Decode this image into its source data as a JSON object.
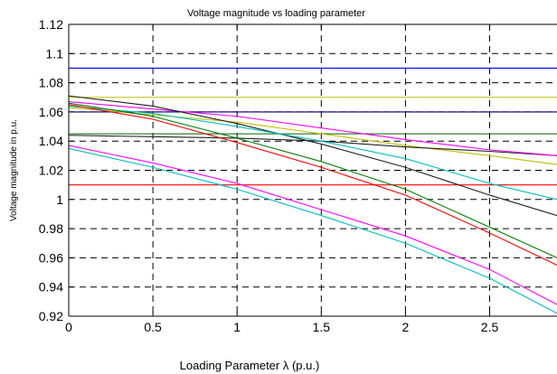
{
  "chart_data": {
    "type": "line",
    "title": "Voltage magnitude vs loading parameter",
    "xlabel": "Loading Parameter λ (p.u.)",
    "ylabel": "Voltage magnitude in p.u.",
    "xlim": [
      0,
      2.9
    ],
    "ylim": [
      0.92,
      1.12
    ],
    "x_ticks": [
      0,
      0.5,
      1,
      1.5,
      2,
      2.5
    ],
    "x_tick_labels": [
      "0",
      "0.5",
      "1",
      "1.5",
      "2",
      "2.5"
    ],
    "y_ticks": [
      0.92,
      0.94,
      0.96,
      0.98,
      1.0,
      1.02,
      1.04,
      1.06,
      1.08,
      1.1,
      1.12
    ],
    "y_tick_labels": [
      "0.92",
      "0.94",
      "0.96",
      "0.98",
      "1",
      "1.02",
      "1.04",
      "1.06",
      "1.08",
      "1.1",
      "1.12"
    ],
    "grid": true,
    "legend": "none",
    "series": [
      {
        "color": "#0000ff",
        "x": [
          0,
          2.9
        ],
        "y": [
          1.09,
          1.09
        ]
      },
      {
        "color": "#bfbf00",
        "x": [
          0,
          2.9
        ],
        "y": [
          1.07,
          1.07
        ]
      },
      {
        "color": "#00007f",
        "x": [
          0,
          2.9
        ],
        "y": [
          1.06,
          1.06
        ]
      },
      {
        "color": "#006000",
        "x": [
          0,
          2.9
        ],
        "y": [
          1.045,
          1.045
        ]
      },
      {
        "color": "#ff0000",
        "x": [
          0,
          2.9
        ],
        "y": [
          1.01,
          1.01
        ]
      },
      {
        "color": "#bfbf00",
        "x": [
          0,
          0.5,
          1,
          1.5,
          2,
          2.5,
          2.9
        ],
        "y": [
          1.063,
          1.058,
          1.053,
          1.045,
          1.037,
          1.03,
          1.024
        ]
      },
      {
        "color": "#202020",
        "x": [
          0,
          0.5,
          1,
          1.5,
          2,
          2.5,
          2.9
        ],
        "y": [
          1.044,
          1.043,
          1.042,
          1.04,
          1.036,
          1.033,
          1.03
        ]
      },
      {
        "color": "#ff00ff",
        "x": [
          0,
          0.5,
          1,
          1.5,
          2,
          2.5,
          2.9
        ],
        "y": [
          1.067,
          1.062,
          1.057,
          1.049,
          1.041,
          1.034,
          1.03
        ]
      },
      {
        "color": "#202020",
        "x": [
          0,
          0.5,
          1,
          1.5,
          2,
          2.5,
          2.9
        ],
        "y": [
          1.071,
          1.064,
          1.052,
          1.038,
          1.022,
          1.003,
          0.989
        ]
      },
      {
        "color": "#00bfbf",
        "x": [
          0,
          0.5,
          1,
          1.5,
          2,
          2.5,
          2.9
        ],
        "y": [
          1.064,
          1.059,
          1.05,
          1.04,
          1.028,
          1.011,
          1.0
        ]
      },
      {
        "color": "#007f00",
        "x": [
          0,
          0.5,
          1,
          1.5,
          2,
          2.5,
          2.9
        ],
        "y": [
          1.066,
          1.057,
          1.042,
          1.026,
          1.007,
          0.981,
          0.96
        ]
      },
      {
        "color": "#ff0000",
        "x": [
          0,
          0.5,
          1,
          1.5,
          2,
          2.5,
          2.9
        ],
        "y": [
          1.065,
          1.055,
          1.039,
          1.022,
          1.003,
          0.977,
          0.955
        ]
      },
      {
        "color": "#ff00ff",
        "x": [
          0,
          0.5,
          1,
          1.5,
          2,
          2.5,
          2.9
        ],
        "y": [
          1.037,
          1.025,
          1.011,
          0.993,
          0.975,
          0.952,
          0.928
        ]
      },
      {
        "color": "#00bfbf",
        "x": [
          0,
          0.5,
          1,
          1.5,
          2,
          2.5,
          2.9
        ],
        "y": [
          1.035,
          1.022,
          1.007,
          0.989,
          0.97,
          0.946,
          0.922
        ]
      }
    ]
  }
}
